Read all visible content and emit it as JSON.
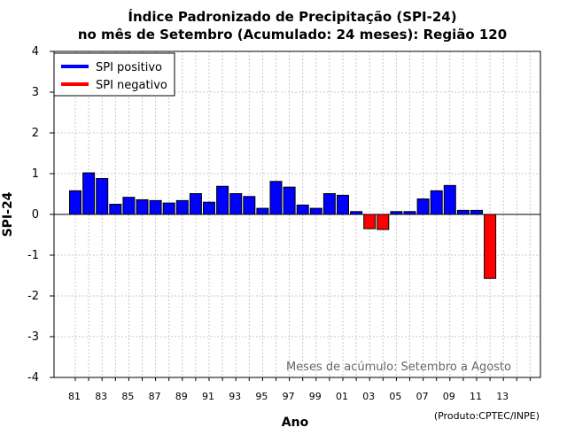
{
  "chart_data": {
    "type": "bar",
    "title_line1": "Índice Padronizado de Precipitação (SPI-24)",
    "title_line2": "no mês de Setembro (Acumulado: 24 meses): Região 120",
    "xlabel": "Ano",
    "ylabel": "SPI-24",
    "ylim": [
      -4,
      4
    ],
    "yticks": [
      "4",
      "3",
      "2",
      "1",
      "0",
      "-1",
      "-2",
      "-3",
      "-4"
    ],
    "xtick_labels": [
      "81",
      "83",
      "85",
      "87",
      "89",
      "91",
      "93",
      "95",
      "97",
      "99",
      "01",
      "03",
      "05",
      "07",
      "09",
      "11",
      "13"
    ],
    "categories": [
      "1981",
      "1982",
      "1983",
      "1984",
      "1985",
      "1986",
      "1987",
      "1988",
      "1989",
      "1990",
      "1991",
      "1992",
      "1993",
      "1994",
      "1995",
      "1996",
      "1997",
      "1998",
      "1999",
      "2000",
      "2001",
      "2002",
      "2003",
      "2004",
      "2005",
      "2006",
      "2007",
      "2008",
      "2009",
      "2010",
      "2011",
      "2012"
    ],
    "values": [
      0.58,
      1.02,
      0.88,
      0.25,
      0.42,
      0.36,
      0.34,
      0.28,
      0.34,
      0.51,
      0.3,
      0.69,
      0.51,
      0.44,
      0.15,
      0.81,
      0.67,
      0.23,
      0.15,
      0.51,
      0.47,
      0.07,
      -0.35,
      -0.37,
      0.07,
      0.07,
      0.38,
      0.58,
      0.71,
      0.1,
      0.1,
      -1.57
    ],
    "legend": [
      {
        "label": "SPI positivo",
        "color": "#0000ff"
      },
      {
        "label": "SPI negativo",
        "color": "#ff0000"
      }
    ],
    "annotation": "Meses de acúmulo: Setembro a Agosto",
    "credit": "(Produto:CPTEC/INPE)",
    "grid": true,
    "legend_position": "top-left",
    "colors": {
      "positive": "#0000ff",
      "negative": "#ff0000",
      "grid": "#c8c8c8"
    }
  }
}
